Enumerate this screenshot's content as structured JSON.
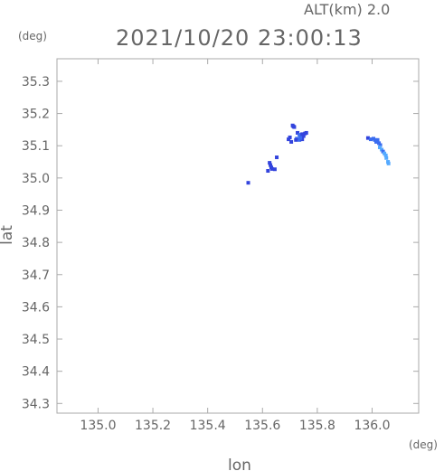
{
  "header": {
    "altitude_label": "ALT(km)  2.0",
    "timestamp": "2021/10/20 23:00:13"
  },
  "chart_data": {
    "type": "scatter",
    "title": "2021/10/20 23:00:13",
    "xlabel": "lon",
    "ylabel": "lat",
    "xunit": "(deg)",
    "yunit": "(deg)",
    "xlim": [
      134.85,
      136.17
    ],
    "ylim": [
      34.27,
      35.37
    ],
    "grid": false,
    "xticks": [
      {
        "value": 135.0,
        "label": "135.0"
      },
      {
        "value": 135.2,
        "label": "135.2"
      },
      {
        "value": 135.4,
        "label": "135.4"
      },
      {
        "value": 135.6,
        "label": "135.6"
      },
      {
        "value": 135.8,
        "label": "135.8"
      },
      {
        "value": 136.0,
        "label": "136.0"
      }
    ],
    "yticks": [
      {
        "value": 34.3,
        "label": "34.3"
      },
      {
        "value": 34.4,
        "label": "34.4"
      },
      {
        "value": 34.5,
        "label": "34.5"
      },
      {
        "value": 34.6,
        "label": "34.6"
      },
      {
        "value": 34.7,
        "label": "34.7"
      },
      {
        "value": 34.8,
        "label": "34.8"
      },
      {
        "value": 34.9,
        "label": "34.9"
      },
      {
        "value": 35.0,
        "label": "35.0"
      },
      {
        "value": 35.1,
        "label": "35.1"
      },
      {
        "value": 35.2,
        "label": "35.2"
      },
      {
        "value": 35.3,
        "label": "35.3"
      }
    ],
    "colors": {
      "dark_blue": "#3344dd",
      "mid_blue": "#3a6cf0",
      "light_blue": "#55aaff",
      "axis": "#aaaaaa"
    },
    "points": [
      {
        "x": 135.71,
        "y": 35.163,
        "color": "dark_blue"
      },
      {
        "x": 135.713,
        "y": 35.16,
        "color": "dark_blue"
      },
      {
        "x": 135.716,
        "y": 35.158,
        "color": "dark_blue"
      },
      {
        "x": 135.728,
        "y": 35.14,
        "color": "dark_blue"
      },
      {
        "x": 135.735,
        "y": 35.134,
        "color": "mid_blue"
      },
      {
        "x": 135.74,
        "y": 35.13,
        "color": "mid_blue"
      },
      {
        "x": 135.745,
        "y": 35.136,
        "color": "dark_blue"
      },
      {
        "x": 135.75,
        "y": 35.13,
        "color": "dark_blue"
      },
      {
        "x": 135.755,
        "y": 35.138,
        "color": "dark_blue"
      },
      {
        "x": 135.76,
        "y": 35.14,
        "color": "dark_blue"
      },
      {
        "x": 135.725,
        "y": 35.122,
        "color": "mid_blue"
      },
      {
        "x": 135.735,
        "y": 35.118,
        "color": "mid_blue"
      },
      {
        "x": 135.745,
        "y": 35.12,
        "color": "dark_blue"
      },
      {
        "x": 135.738,
        "y": 35.124,
        "color": "mid_blue"
      },
      {
        "x": 135.722,
        "y": 35.118,
        "color": "dark_blue"
      },
      {
        "x": 135.7,
        "y": 35.126,
        "color": "dark_blue"
      },
      {
        "x": 135.695,
        "y": 35.12,
        "color": "dark_blue"
      },
      {
        "x": 135.705,
        "y": 35.112,
        "color": "dark_blue"
      },
      {
        "x": 135.626,
        "y": 35.047,
        "color": "dark_blue"
      },
      {
        "x": 135.629,
        "y": 35.04,
        "color": "dark_blue"
      },
      {
        "x": 135.632,
        "y": 35.033,
        "color": "dark_blue"
      },
      {
        "x": 135.62,
        "y": 35.022,
        "color": "dark_blue"
      },
      {
        "x": 135.635,
        "y": 35.028,
        "color": "dark_blue"
      },
      {
        "x": 135.645,
        "y": 35.027,
        "color": "dark_blue"
      },
      {
        "x": 135.652,
        "y": 35.064,
        "color": "dark_blue"
      },
      {
        "x": 135.548,
        "y": 34.985,
        "color": "dark_blue"
      },
      {
        "x": 135.985,
        "y": 35.124,
        "color": "dark_blue"
      },
      {
        "x": 135.995,
        "y": 35.12,
        "color": "mid_blue"
      },
      {
        "x": 136.005,
        "y": 35.122,
        "color": "mid_blue"
      },
      {
        "x": 136.01,
        "y": 35.118,
        "color": "mid_blue"
      },
      {
        "x": 136.015,
        "y": 35.112,
        "color": "mid_blue"
      },
      {
        "x": 136.02,
        "y": 35.118,
        "color": "mid_blue"
      },
      {
        "x": 136.025,
        "y": 35.108,
        "color": "mid_blue"
      },
      {
        "x": 136.03,
        "y": 35.102,
        "color": "mid_blue"
      },
      {
        "x": 136.028,
        "y": 35.095,
        "color": "light_blue"
      },
      {
        "x": 136.035,
        "y": 35.088,
        "color": "light_blue"
      },
      {
        "x": 136.04,
        "y": 35.082,
        "color": "mid_blue"
      },
      {
        "x": 136.045,
        "y": 35.076,
        "color": "light_blue"
      },
      {
        "x": 136.05,
        "y": 35.07,
        "color": "light_blue"
      },
      {
        "x": 136.052,
        "y": 35.062,
        "color": "light_blue"
      },
      {
        "x": 136.058,
        "y": 35.05,
        "color": "light_blue"
      },
      {
        "x": 136.06,
        "y": 35.045,
        "color": "light_blue"
      }
    ]
  }
}
